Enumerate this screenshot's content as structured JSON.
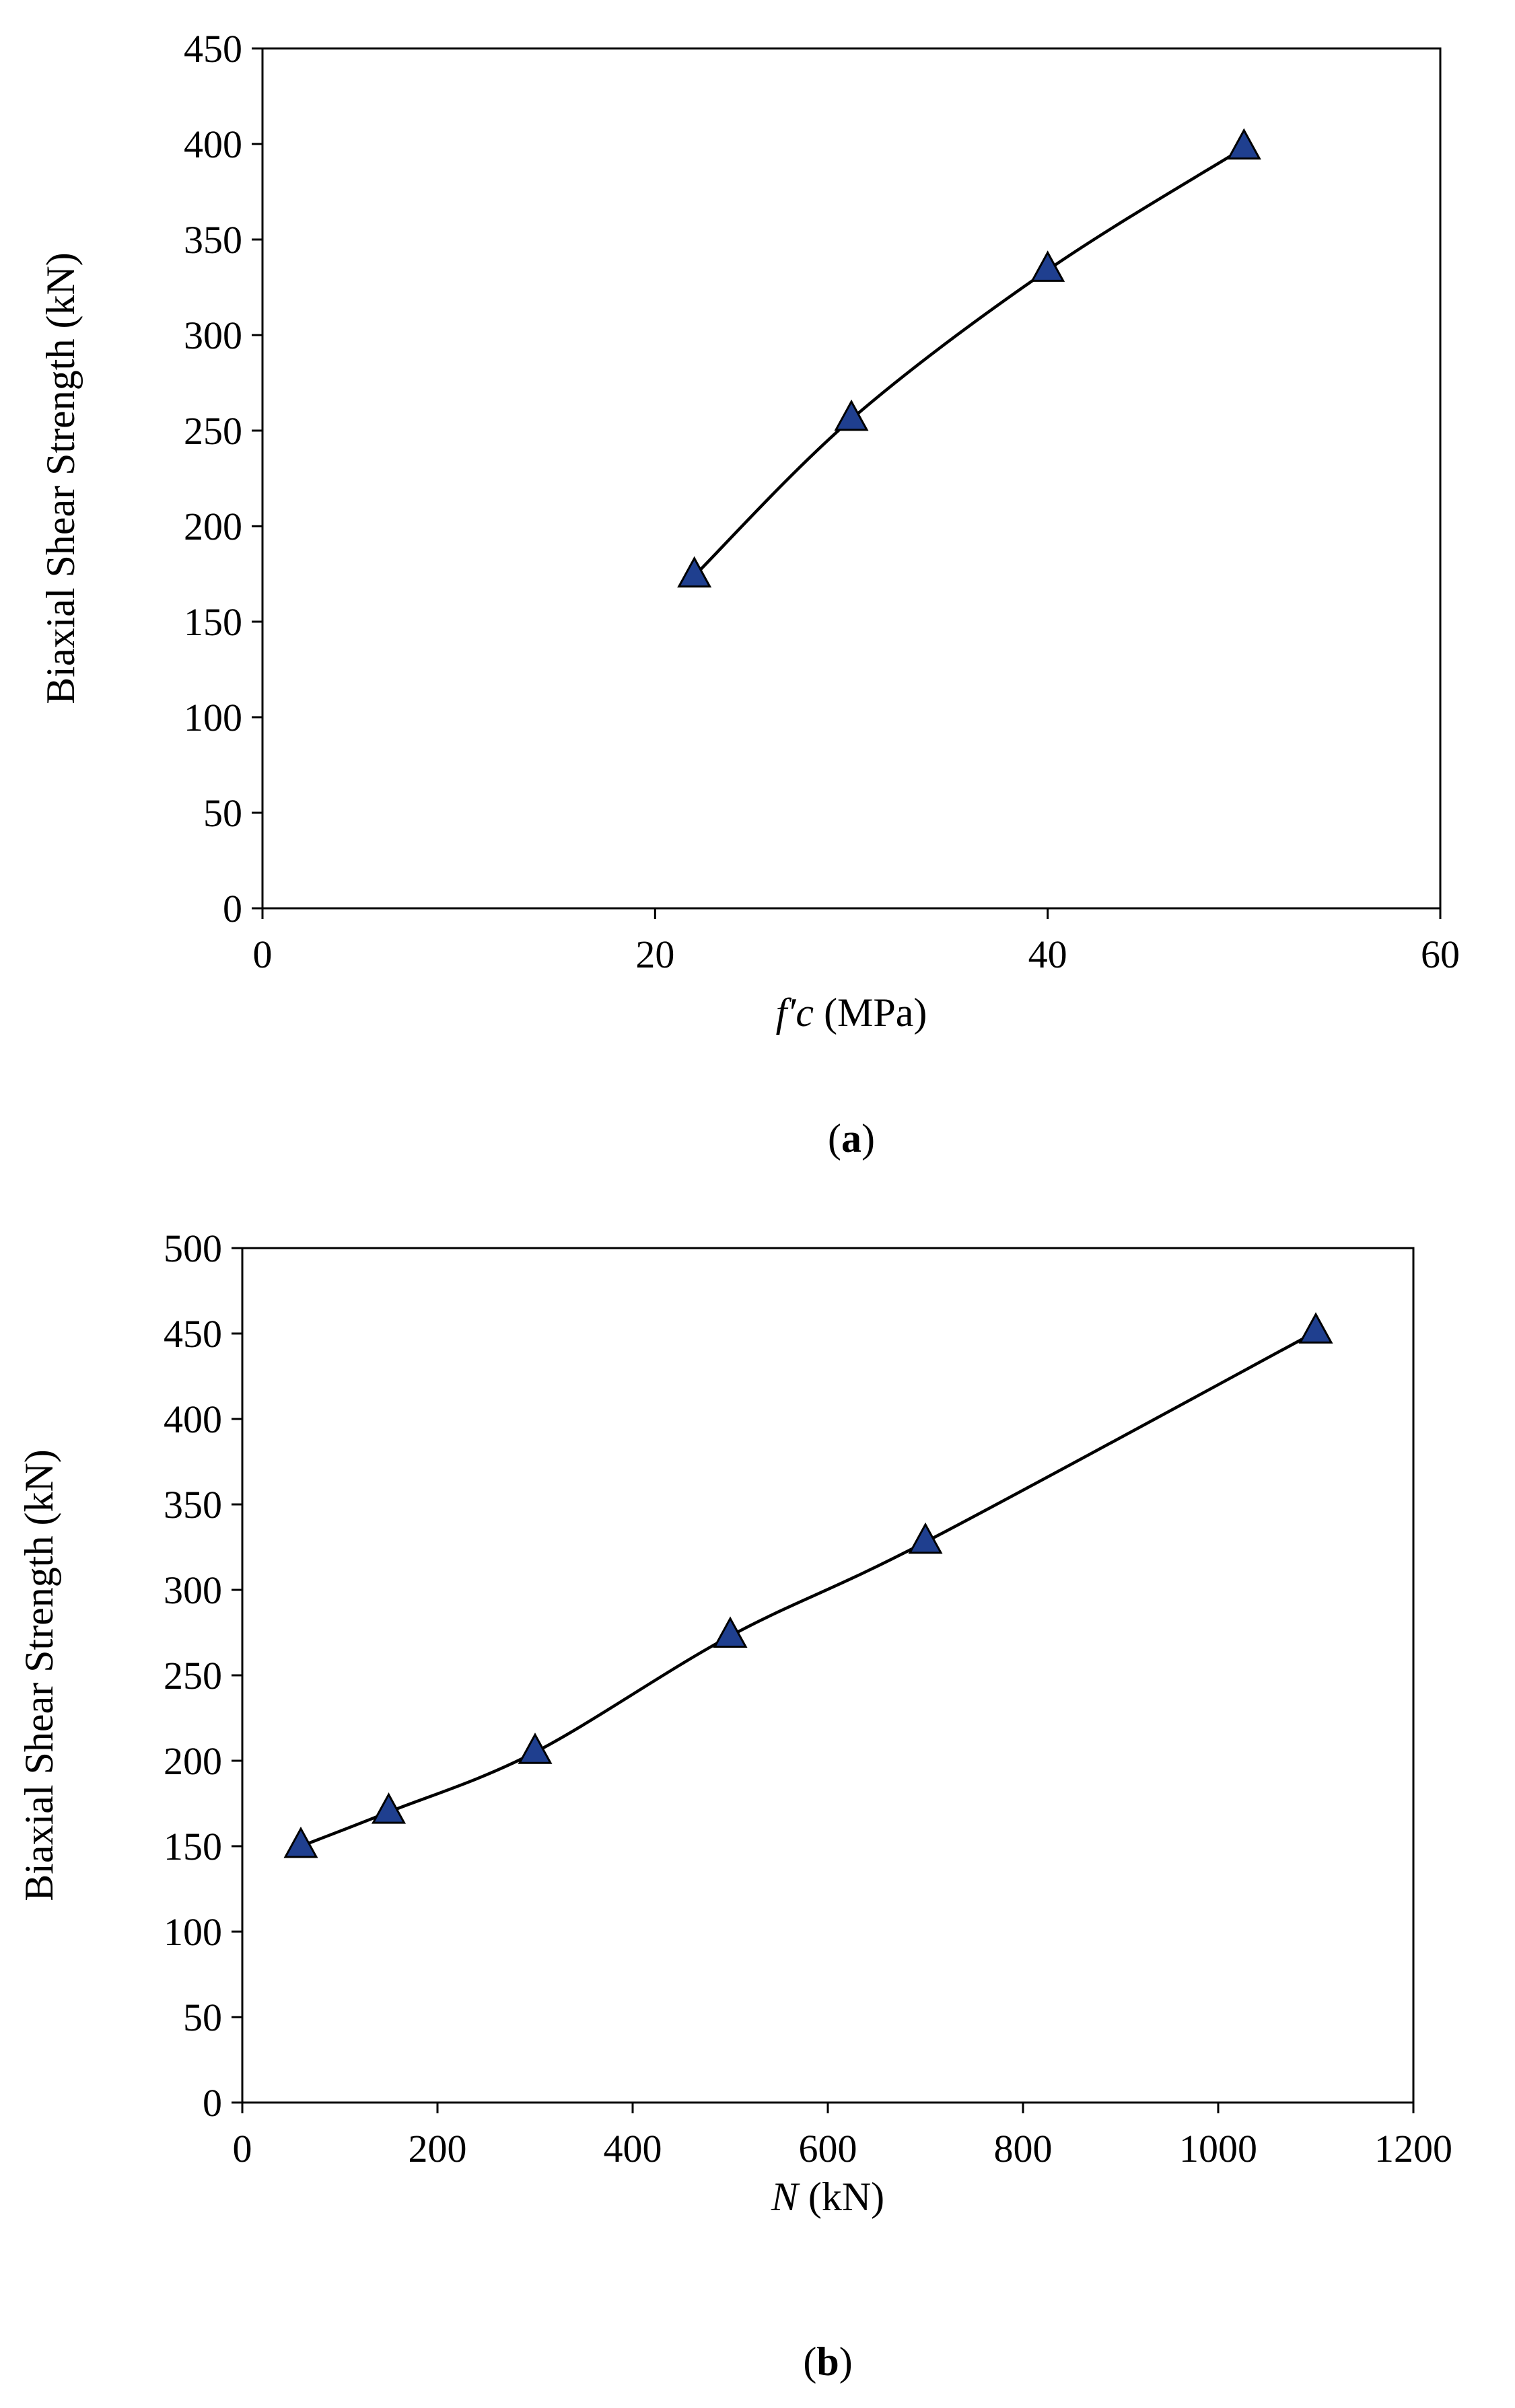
{
  "chart_data": [
    {
      "type": "line",
      "panel_label_open": "(",
      "panel_label": "a",
      "panel_label_close": ")",
      "xlabel_italic": "f′c",
      "xlabel_rest": " (MPa)",
      "ylabel": "Biaxial Shear Strength (kN)",
      "xlim": [
        0,
        60
      ],
      "ylim": [
        0,
        450
      ],
      "xticks": [
        0,
        20,
        40,
        60
      ],
      "yticks": [
        0,
        50,
        100,
        150,
        200,
        250,
        300,
        350,
        400,
        450
      ],
      "grid": false,
      "marker": "triangle",
      "marker_color": "#1f3f8f",
      "line_color": "#000000",
      "series": [
        {
          "x": [
            22,
            30,
            40,
            50
          ],
          "y": [
            174,
            256,
            334,
            398
          ]
        }
      ]
    },
    {
      "type": "line",
      "panel_label_open": "(",
      "panel_label": "b",
      "panel_label_close": ")",
      "xlabel_italic": "N",
      "xlabel_rest": " (kN)",
      "ylabel": "Biaxial Shear Strength (kN)",
      "xlim": [
        0,
        1200
      ],
      "ylim": [
        0,
        500
      ],
      "xticks": [
        0,
        200,
        400,
        600,
        800,
        1000,
        1200
      ],
      "yticks": [
        0,
        50,
        100,
        150,
        200,
        250,
        300,
        350,
        400,
        450,
        500
      ],
      "grid": false,
      "marker": "triangle",
      "marker_color": "#1f3f8f",
      "line_color": "#000000",
      "series": [
        {
          "x": [
            60,
            150,
            300,
            500,
            700,
            1100
          ],
          "y": [
            150,
            170,
            205,
            273,
            328,
            451
          ]
        }
      ]
    }
  ]
}
